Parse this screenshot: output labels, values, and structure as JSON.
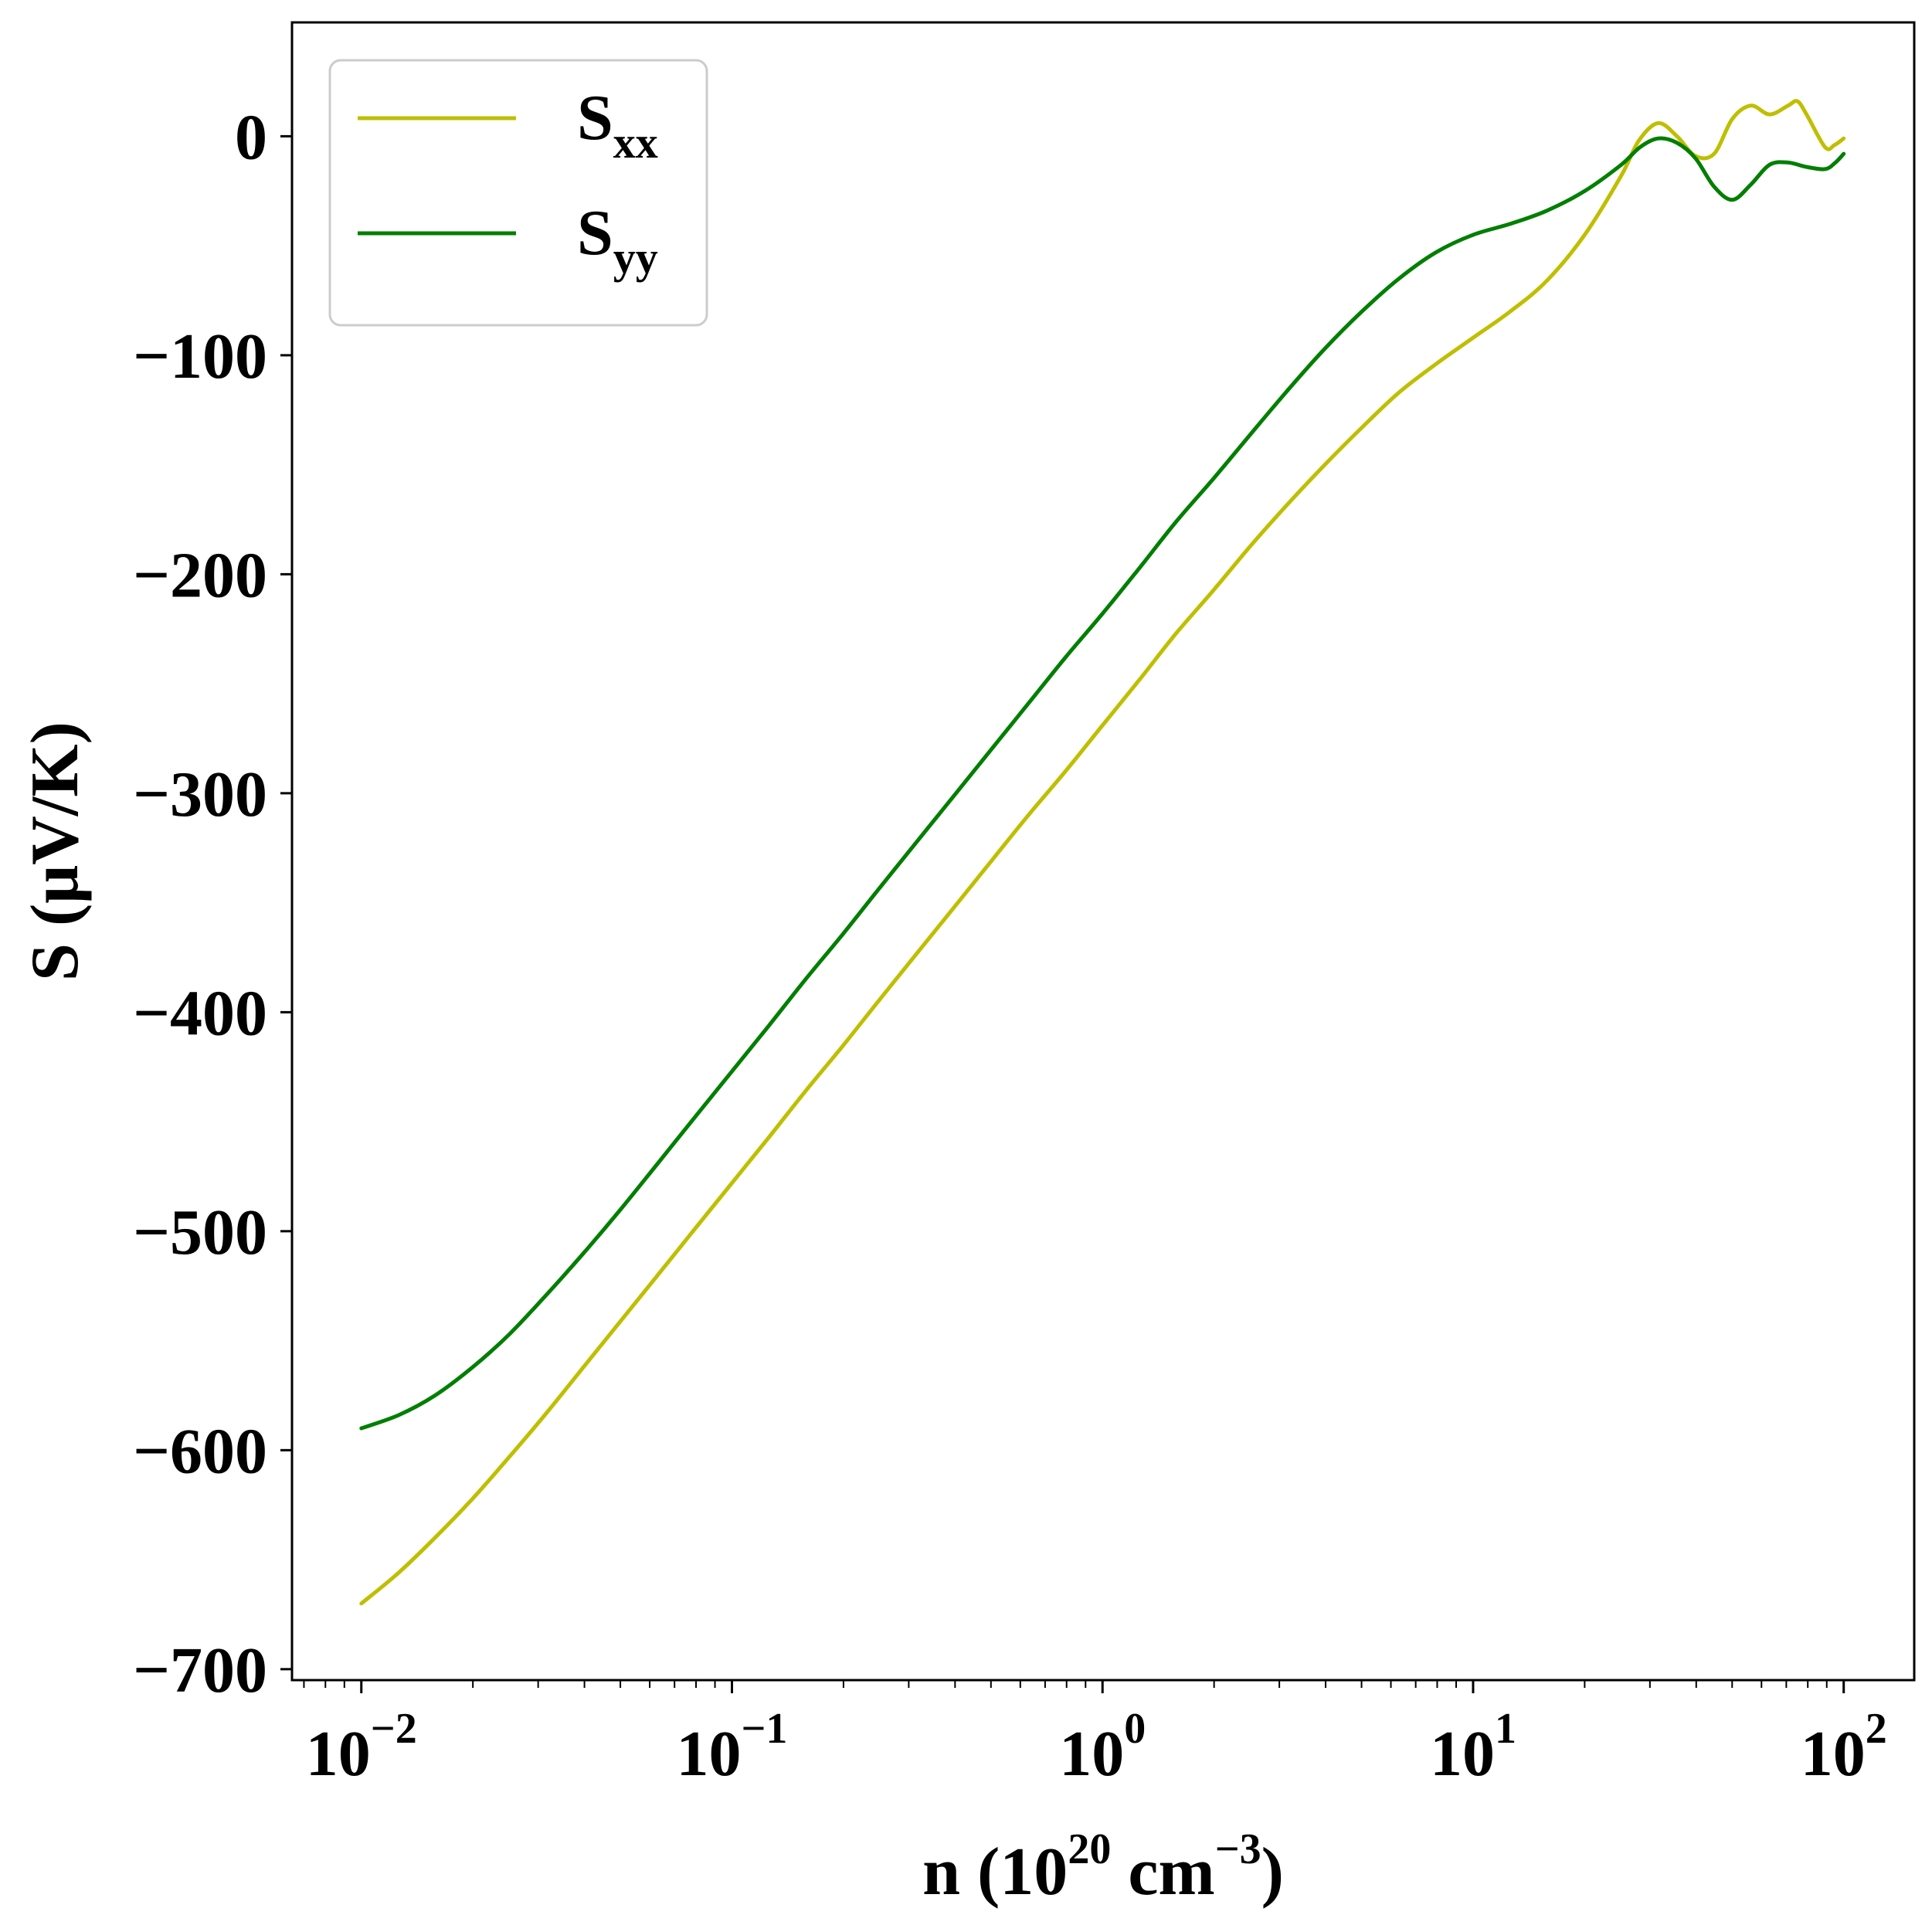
{
  "chart_data": {
    "type": "line",
    "xlabel": {
      "base": "n (10",
      "sup1": "20",
      "mid": " cm",
      "sup2": "−3",
      "end": ")"
    },
    "ylabel": "S (μV/K)",
    "xscale": "log",
    "xlim": [
      0.0065,
      155
    ],
    "ylim": [
      -705,
      52
    ],
    "grid": false,
    "legend_position": "top-left",
    "x_ticks": [
      {
        "base": "10",
        "exp": "−2",
        "value": 0.01
      },
      {
        "base": "10",
        "exp": "−1",
        "value": 0.1
      },
      {
        "base": "10",
        "exp": "0",
        "value": 1
      },
      {
        "base": "10",
        "exp": "1",
        "value": 10
      },
      {
        "base": "10",
        "exp": "2",
        "value": 100
      }
    ],
    "y_ticks": [
      {
        "label": "0",
        "value": 0
      },
      {
        "label": "−100",
        "value": -100
      },
      {
        "label": "−200",
        "value": -200
      },
      {
        "label": "−300",
        "value": -300
      },
      {
        "label": "−400",
        "value": -400
      },
      {
        "label": "−500",
        "value": -500
      },
      {
        "label": "−600",
        "value": -600
      },
      {
        "label": "−700",
        "value": -700
      }
    ],
    "series": [
      {
        "name": "S",
        "name_sub": "xx",
        "color": "#bfbf00",
        "points": [
          [
            0.01,
            -670
          ],
          [
            0.0126,
            -656
          ],
          [
            0.0158,
            -640
          ],
          [
            0.02,
            -622
          ],
          [
            0.0251,
            -603
          ],
          [
            0.0316,
            -583
          ],
          [
            0.0398,
            -562
          ],
          [
            0.0501,
            -541
          ],
          [
            0.0631,
            -520
          ],
          [
            0.0794,
            -499
          ],
          [
            0.1,
            -478
          ],
          [
            0.126,
            -457
          ],
          [
            0.158,
            -436
          ],
          [
            0.2,
            -415
          ],
          [
            0.251,
            -394
          ],
          [
            0.316,
            -373
          ],
          [
            0.398,
            -352
          ],
          [
            0.501,
            -331
          ],
          [
            0.631,
            -310
          ],
          [
            0.794,
            -290
          ],
          [
            1.0,
            -269
          ],
          [
            1.26,
            -248
          ],
          [
            1.58,
            -227
          ],
          [
            2.0,
            -207
          ],
          [
            2.51,
            -187
          ],
          [
            3.16,
            -168
          ],
          [
            3.98,
            -150
          ],
          [
            5.01,
            -133
          ],
          [
            6.31,
            -117
          ],
          [
            7.94,
            -104
          ],
          [
            10.0,
            -92
          ],
          [
            12.6,
            -80
          ],
          [
            15.8,
            -66
          ],
          [
            20.0,
            -45
          ],
          [
            25.1,
            -18
          ],
          [
            28.0,
            -2
          ],
          [
            31.6,
            6
          ],
          [
            35.5,
            0
          ],
          [
            39.8,
            -9
          ],
          [
            44.7,
            -8
          ],
          [
            50.1,
            8
          ],
          [
            56.2,
            14
          ],
          [
            63.1,
            10
          ],
          [
            70.8,
            14
          ],
          [
            75.0,
            16
          ],
          [
            79.4,
            10
          ],
          [
            89.1,
            -5
          ],
          [
            94.4,
            -4
          ],
          [
            100.0,
            -1
          ]
        ]
      },
      {
        "name": "S",
        "name_sub": "yy",
        "color": "#007f00",
        "points": [
          [
            0.01,
            -590
          ],
          [
            0.0126,
            -584
          ],
          [
            0.0158,
            -575
          ],
          [
            0.02,
            -562
          ],
          [
            0.0251,
            -547
          ],
          [
            0.0316,
            -529
          ],
          [
            0.0398,
            -510
          ],
          [
            0.0501,
            -490
          ],
          [
            0.0631,
            -469
          ],
          [
            0.0794,
            -448
          ],
          [
            0.1,
            -427
          ],
          [
            0.126,
            -406
          ],
          [
            0.158,
            -385
          ],
          [
            0.2,
            -364
          ],
          [
            0.251,
            -343
          ],
          [
            0.316,
            -322
          ],
          [
            0.398,
            -301
          ],
          [
            0.501,
            -280
          ],
          [
            0.631,
            -259
          ],
          [
            0.794,
            -238
          ],
          [
            1.0,
            -218
          ],
          [
            1.26,
            -197
          ],
          [
            1.58,
            -176
          ],
          [
            2.0,
            -156
          ],
          [
            2.51,
            -136
          ],
          [
            3.16,
            -116
          ],
          [
            3.98,
            -97
          ],
          [
            5.01,
            -80
          ],
          [
            6.31,
            -65
          ],
          [
            7.94,
            -53
          ],
          [
            10.0,
            -45
          ],
          [
            12.6,
            -40
          ],
          [
            15.8,
            -34
          ],
          [
            20.0,
            -25
          ],
          [
            25.1,
            -13
          ],
          [
            28.2,
            -5
          ],
          [
            31.6,
            -1
          ],
          [
            35.5,
            -3
          ],
          [
            39.8,
            -10
          ],
          [
            44.7,
            -23
          ],
          [
            50.1,
            -29
          ],
          [
            56.2,
            -22
          ],
          [
            63.1,
            -13
          ],
          [
            70.8,
            -12
          ],
          [
            79.4,
            -14
          ],
          [
            89.1,
            -15
          ],
          [
            95.0,
            -12
          ],
          [
            100.0,
            -8
          ]
        ]
      }
    ]
  }
}
